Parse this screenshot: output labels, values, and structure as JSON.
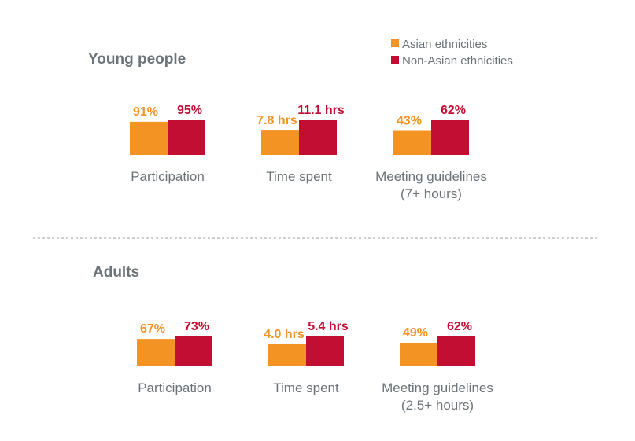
{
  "colors": {
    "asian": "#F39324",
    "non_asian": "#C20E32",
    "text": "#6b7378",
    "divider": "#9a9fa3"
  },
  "legend": [
    {
      "label": "Asian ethnicities",
      "color_key": "asian"
    },
    {
      "label": "Non-Asian ethnicities",
      "color_key": "non_asian"
    }
  ],
  "chart_data": [
    {
      "type": "bar",
      "title": "Young people",
      "series": [
        {
          "name": "Asian ethnicities"
        },
        {
          "name": "Non-Asian ethnicities"
        }
      ],
      "groups": [
        {
          "category": [
            "Participation"
          ],
          "asian": {
            "value": 91,
            "label": "91%"
          },
          "non_asian": {
            "value": 95,
            "label": "95%"
          }
        },
        {
          "category": [
            "Time spent"
          ],
          "asian": {
            "value": 7.8,
            "label": "7.8 hrs"
          },
          "non_asian": {
            "value": 11.1,
            "label": "11.1 hrs"
          }
        },
        {
          "category": [
            "Meeting guidelines",
            "(7+ hours)"
          ],
          "asian": {
            "value": 43,
            "label": "43%"
          },
          "non_asian": {
            "value": 62,
            "label": "62%"
          }
        }
      ]
    },
    {
      "type": "bar",
      "title": "Adults",
      "series": [
        {
          "name": "Asian ethnicities"
        },
        {
          "name": "Non-Asian ethnicities"
        }
      ],
      "groups": [
        {
          "category": [
            "Participation"
          ],
          "asian": {
            "value": 67,
            "label": "67%"
          },
          "non_asian": {
            "value": 73,
            "label": "73%"
          }
        },
        {
          "category": [
            "Time spent"
          ],
          "asian": {
            "value": 4.0,
            "label": "4.0 hrs"
          },
          "non_asian": {
            "value": 5.4,
            "label": "5.4 hrs"
          }
        },
        {
          "category": [
            "Meeting guidelines",
            "(2.5+ hours)"
          ],
          "asian": {
            "value": 49,
            "label": "49%"
          },
          "non_asian": {
            "value": 62,
            "label": "62%"
          }
        }
      ]
    }
  ]
}
